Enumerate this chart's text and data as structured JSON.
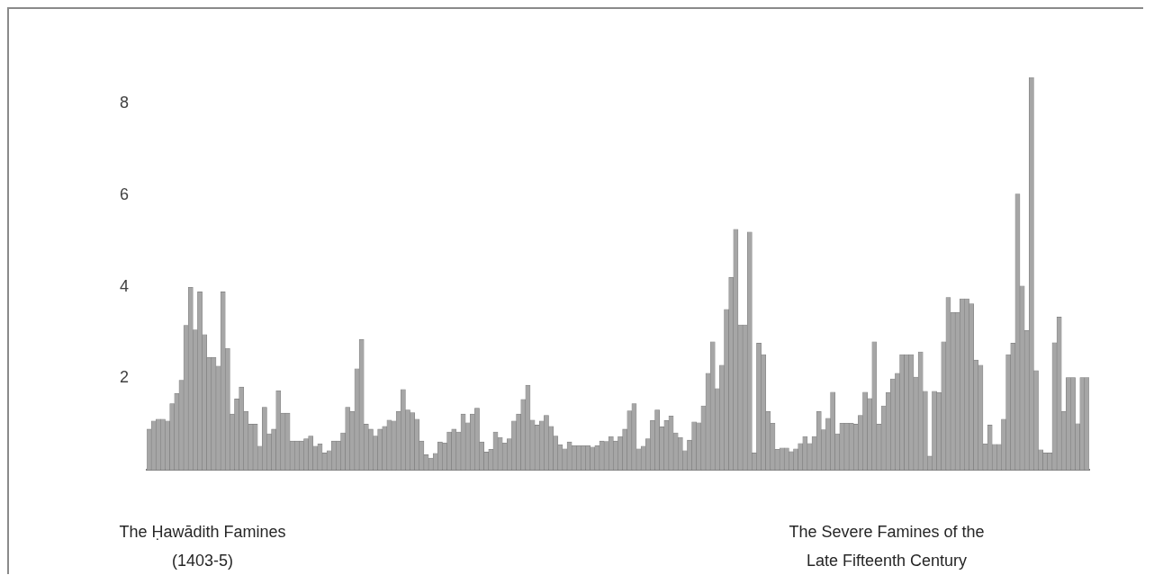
{
  "chart_data": {
    "type": "bar",
    "categories": [
      null,
      null,
      null,
      null,
      null,
      null,
      null,
      null,
      null,
      null,
      null,
      null,
      null,
      null,
      null,
      null,
      null,
      null,
      null,
      null,
      null,
      null,
      null,
      null,
      null,
      null,
      null,
      null,
      null,
      null,
      null,
      null,
      null,
      null,
      null,
      null,
      null,
      null,
      null,
      null,
      null,
      null,
      null,
      null,
      null,
      null,
      null,
      null,
      null,
      null,
      null,
      null,
      null,
      null,
      null,
      null,
      null,
      null,
      null,
      null,
      null,
      null,
      null,
      null,
      null,
      null,
      null,
      null,
      null,
      null,
      null,
      null,
      null,
      null,
      null,
      null,
      null,
      null,
      null,
      null,
      null,
      null,
      null,
      null,
      null,
      null,
      null,
      null,
      null,
      null,
      null,
      null,
      null,
      null,
      null,
      null,
      null,
      null,
      null,
      null,
      null,
      null,
      null,
      null,
      null,
      null,
      null,
      null,
      null,
      null,
      null,
      null,
      null,
      null,
      null,
      null,
      null,
      null,
      null,
      null,
      null,
      null,
      null,
      null,
      null,
      null,
      null,
      null,
      null,
      null,
      null,
      null,
      null,
      null,
      null,
      null,
      null,
      null,
      null,
      null,
      null,
      null,
      null,
      null,
      null,
      null,
      null,
      null,
      null,
      null,
      null,
      null,
      null,
      null,
      null,
      null,
      null,
      null,
      null,
      null,
      null,
      null,
      null,
      null,
      null,
      null,
      null,
      null,
      null,
      null,
      null,
      null,
      null,
      null,
      null,
      null,
      null,
      null,
      null,
      null,
      null,
      null,
      null,
      null,
      null,
      null,
      null,
      null,
      null,
      null,
      null,
      null,
      null,
      null,
      null,
      null,
      null,
      null,
      null,
      null,
      null,
      null,
      null,
      null
    ],
    "values": [
      0.89,
      1.07,
      1.11,
      1.11,
      1.07,
      1.45,
      1.67,
      1.96,
      3.16,
      3.99,
      3.06,
      3.89,
      2.96,
      2.46,
      2.46,
      2.27,
      3.89,
      2.66,
      1.22,
      1.55,
      1.81,
      1.28,
      1.0,
      1.0,
      0.52,
      1.37,
      0.79,
      0.89,
      1.73,
      1.24,
      1.24,
      0.63,
      0.63,
      0.63,
      0.68,
      0.74,
      0.52,
      0.57,
      0.37,
      0.42,
      0.63,
      0.63,
      0.81,
      1.37,
      1.28,
      2.21,
      2.85,
      1.0,
      0.89,
      0.74,
      0.89,
      0.95,
      1.09,
      1.07,
      1.28,
      1.76,
      1.31,
      1.25,
      1.11,
      0.63,
      0.33,
      0.26,
      0.36,
      0.61,
      0.59,
      0.83,
      0.89,
      0.83,
      1.22,
      1.03,
      1.22,
      1.35,
      0.61,
      0.39,
      0.45,
      0.83,
      0.71,
      0.59,
      0.68,
      1.07,
      1.22,
      1.54,
      1.85,
      1.09,
      0.98,
      1.07,
      1.19,
      0.95,
      0.74,
      0.55,
      0.46,
      0.61,
      0.53,
      0.53,
      0.53,
      0.53,
      0.5,
      0.53,
      0.63,
      0.62,
      0.73,
      0.63,
      0.73,
      0.89,
      1.29,
      1.45,
      0.46,
      0.52,
      0.68,
      1.08,
      1.31,
      0.94,
      1.08,
      1.18,
      0.81,
      0.71,
      0.42,
      0.65,
      1.05,
      1.03,
      1.4,
      2.11,
      2.8,
      1.78,
      2.29,
      3.51,
      4.21,
      5.26,
      3.17,
      3.17,
      5.2,
      0.37,
      2.77,
      2.52,
      1.28,
      1.02,
      0.45,
      0.48,
      0.48,
      0.4,
      0.46,
      0.58,
      0.73,
      0.58,
      0.73,
      1.28,
      0.88,
      1.13,
      1.7,
      0.79,
      1.02,
      1.02,
      1.02,
      1.0,
      1.19,
      1.7,
      1.56,
      2.8,
      1.0,
      1.4,
      1.69,
      1.99,
      2.11,
      2.52,
      2.52,
      2.52,
      2.03,
      2.58,
      1.72,
      0.3,
      1.72,
      1.69,
      2.8,
      3.77,
      3.44,
      3.44,
      3.74,
      3.74,
      3.63,
      2.4,
      2.29,
      0.57,
      0.98,
      0.56,
      0.56,
      1.11,
      2.52,
      2.77,
      6.03,
      4.02,
      3.05,
      8.58,
      2.17,
      0.44,
      0.37,
      0.37,
      2.78,
      3.34,
      1.28,
      2.02,
      2.02,
      1.01,
      2.02,
      2.02
    ],
    "color": "#a6a6a6",
    "ylim": [
      0,
      8.58
    ],
    "yticks": [
      2,
      4,
      6,
      8
    ],
    "tick_labels": "y",
    "annotations": [
      "The Ḥawādith Famines\n(1403-5)",
      "The Severe Famines of the\nLate Fifteenth Century"
    ]
  }
}
